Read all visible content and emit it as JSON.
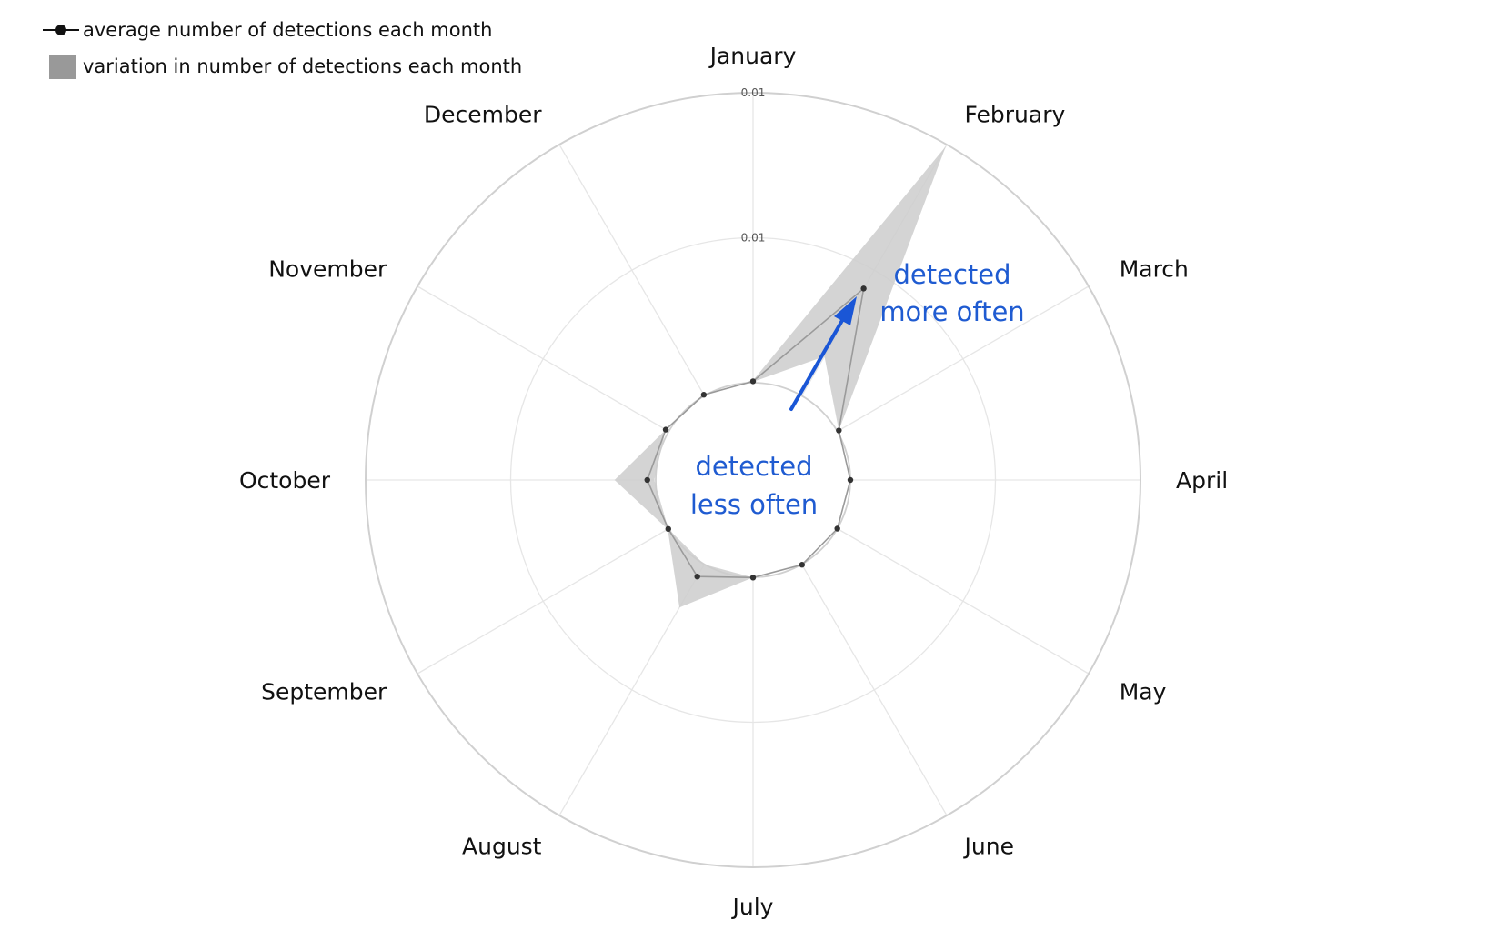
{
  "legend": {
    "line_label": "average number of detections each month",
    "area_label": "variation in number of detections each month"
  },
  "annotations": {
    "more_line1": "detected",
    "more_line2": "more often",
    "less_line1": "detected",
    "less_line2": "less often",
    "arrow_color": "#1a56d6"
  },
  "colors": {
    "ribbon": "#cccccc",
    "line": "#9a9a9a",
    "point": "#333333",
    "grid": "#e6e6e6",
    "outer_ring": "#d0d0d0",
    "annotation": "#1f5bd1"
  },
  "chart_data": {
    "type": "radar",
    "title": "",
    "categories": [
      "January",
      "February",
      "March",
      "April",
      "May",
      "June",
      "July",
      "August",
      "September",
      "October",
      "November",
      "December"
    ],
    "tick_labels": [
      "0.01",
      "0.01"
    ],
    "rlim": [
      0,
      0.01
    ],
    "grid": true,
    "legend_position": "top-left",
    "series": [
      {
        "name": "average number of detections each month",
        "kind": "line",
        "values": [
          5e-05,
          0.00427,
          6e-05,
          0.0,
          0.0,
          2e-05,
          1e-05,
          0.00049,
          2e-05,
          0.00029,
          0.00012,
          4e-05
        ]
      },
      {
        "name": "variation in number of detections each month",
        "kind": "ribbon",
        "upper": [
          8e-05,
          0.00993,
          6e-05,
          0.0,
          0.0,
          3e-05,
          1e-05,
          0.00172,
          4e-05,
          0.00142,
          0.00012,
          4e-05
        ],
        "lower": [
          3e-05,
          0.00157,
          6e-05,
          0.0,
          0.0,
          2e-05,
          1e-05,
          1e-05,
          2e-05,
          5e-05,
          0.00012,
          4e-05
        ]
      }
    ]
  }
}
